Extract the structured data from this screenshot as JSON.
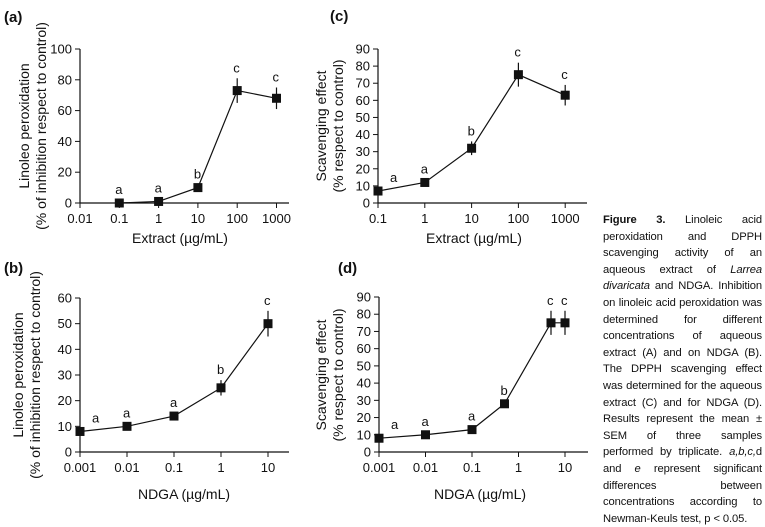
{
  "caption": {
    "label": "Figure 3.",
    "part1": " Linoleic acid peroxidation and DPPH scavenging activity of an aqueous extract of ",
    "species": "Larrea divaricata",
    "part2": " and NDGA. Inhibition on linoleic acid peroxidation was determined for different concentrations of aqueous extract (A) and on NDGA (B). The DPPH scavenging effect was determined for the aqueous extract (C) and for NDGA (D). Results represent the mean ± SEM of three samples performed by triplicate. ",
    "letters": "a,b,c,",
    "part3": "d and ",
    "letter_e": "e",
    "part4": " represent significant differences between concentrations according to Newman-Keuls test, p < 0.05."
  },
  "chart_data": [
    {
      "id": "a",
      "panel_label": "(a)",
      "type": "line",
      "xlabel": "Extract (µg/mL)",
      "ylabel": [
        "Linoleo peroxidation",
        "(% of inhibition respect to control)"
      ],
      "xscale": "log",
      "xticks": [
        "0.01",
        "0.1",
        "1",
        "10",
        "100",
        "1000"
      ],
      "xtick_values": [
        0.01,
        0.1,
        1,
        10,
        100,
        1000
      ],
      "ylim": [
        0,
        100
      ],
      "yticks": [
        0,
        20,
        40,
        60,
        80,
        100
      ],
      "x": [
        0.1,
        1,
        10,
        100,
        1000
      ],
      "y": [
        0,
        1,
        10,
        73,
        68
      ],
      "err": [
        0,
        0,
        0,
        8,
        7
      ],
      "letters": [
        "a",
        "a",
        "b",
        "c",
        "c"
      ]
    },
    {
      "id": "c",
      "panel_label": "(c)",
      "type": "line",
      "xlabel": "Extract (µg/mL)",
      "ylabel": [
        "Scavenging effect",
        "(% respect to control)"
      ],
      "xscale": "log",
      "xticks": [
        "0.1",
        "1",
        "10",
        "100",
        "1000"
      ],
      "xtick_values": [
        0.1,
        1,
        10,
        100,
        1000
      ],
      "ylim": [
        0,
        90
      ],
      "yticks": [
        0,
        10,
        20,
        30,
        40,
        50,
        60,
        70,
        80,
        90
      ],
      "x": [
        0.1,
        1,
        10,
        100,
        1000
      ],
      "y": [
        7,
        12,
        32,
        75,
        63
      ],
      "err": [
        0,
        0,
        4,
        7,
        6
      ],
      "letters": [
        "a",
        "a",
        "b",
        "c",
        "c"
      ]
    },
    {
      "id": "b",
      "panel_label": "(b)",
      "type": "line",
      "xlabel": "NDGA (µg/mL)",
      "ylabel": [
        "Linoleo peroxidation",
        "(% of inhibition respect to control)"
      ],
      "xscale": "log",
      "xticks": [
        "0.001",
        "0.01",
        "0.1",
        "1",
        "10"
      ],
      "xtick_values": [
        0.001,
        0.01,
        0.1,
        1,
        10
      ],
      "ylim": [
        0,
        60
      ],
      "yticks": [
        0,
        10,
        20,
        30,
        40,
        50,
        60
      ],
      "x": [
        0.001,
        0.01,
        0.1,
        1,
        10
      ],
      "y": [
        8,
        10,
        14,
        25,
        50
      ],
      "err": [
        0,
        0,
        0,
        3,
        5
      ],
      "letters": [
        "a",
        "a",
        "a",
        "b",
        "c"
      ]
    },
    {
      "id": "d",
      "panel_label": "(d)",
      "type": "line",
      "xlabel": "NDGA (µg/mL)",
      "ylabel": [
        "Scavenging effect",
        "(% respect to control)"
      ],
      "xscale": "log",
      "xticks": [
        "0.001",
        "0.01",
        "0.1",
        "1",
        "10"
      ],
      "xtick_values": [
        0.001,
        0.01,
        0.1,
        1,
        10
      ],
      "ylim": [
        0,
        90
      ],
      "yticks": [
        0,
        10,
        20,
        30,
        40,
        50,
        60,
        70,
        80,
        90
      ],
      "x": [
        0.001,
        0.01,
        0.1,
        0.5,
        5,
        10
      ],
      "y": [
        8,
        10,
        13,
        28,
        75,
        75
      ],
      "err": [
        0,
        0,
        0,
        0,
        7,
        7
      ],
      "letters": [
        "a",
        "a",
        "a",
        "b",
        "c",
        "c"
      ]
    }
  ]
}
